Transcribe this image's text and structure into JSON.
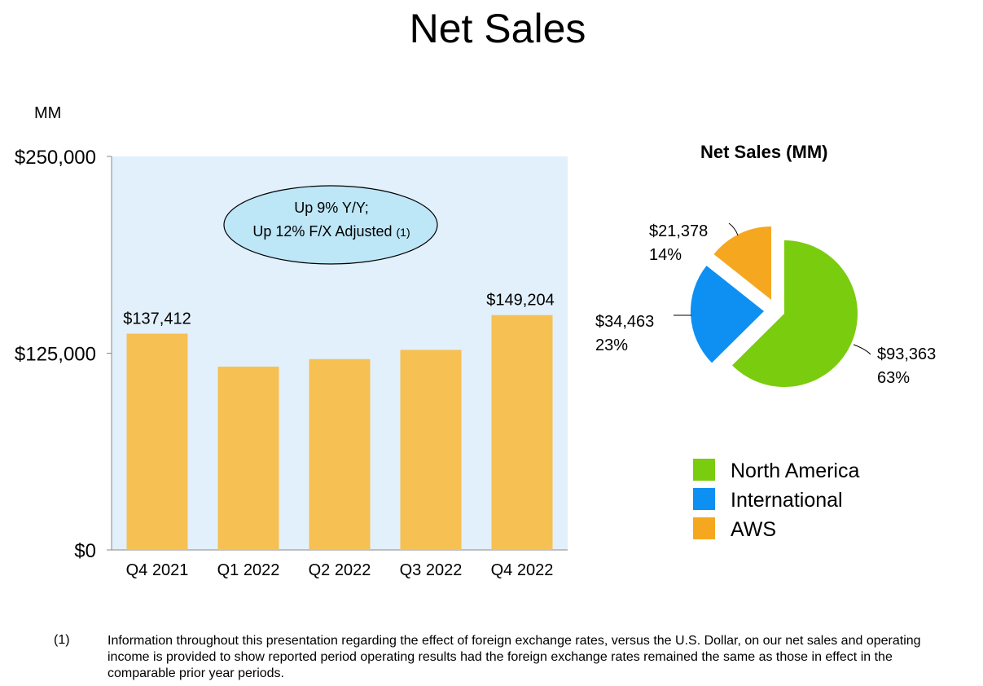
{
  "title": "Net Sales",
  "chart_data": [
    {
      "type": "bar",
      "ylabel": "MM",
      "ylim": [
        0,
        250000
      ],
      "yticks": [
        "$0",
        "$125,000",
        "$250,000"
      ],
      "ytick_values": [
        0,
        125000,
        250000
      ],
      "categories": [
        "Q4 2021",
        "Q1 2022",
        "Q2 2022",
        "Q3 2022",
        "Q4 2022"
      ],
      "values": [
        137412,
        116444,
        121234,
        127101,
        149204
      ],
      "data_labels": [
        "$137,412",
        "",
        "",
        "",
        "$149,204"
      ],
      "annotation": {
        "line1": "Up 9% Y/Y;",
        "line2": "Up 12% F/X Adjusted",
        "note": "(1)"
      },
      "colors": {
        "bar": "#F7C052",
        "plot_bg": "#E2F0FB",
        "callout": "#BDE6F7"
      }
    },
    {
      "type": "pie",
      "title": "Net Sales (MM)",
      "slices": [
        {
          "name": "North America",
          "value": 93363,
          "label": "$93,363",
          "pct": "63%",
          "color": "#7ACC0F"
        },
        {
          "name": "International",
          "value": 34463,
          "label": "$34,463",
          "pct": "23%",
          "color": "#0D90F2"
        },
        {
          "name": "AWS",
          "value": 21378,
          "label": "$21,378",
          "pct": "14%",
          "color": "#F5A81F"
        }
      ],
      "legend_placement": "bottom"
    }
  ],
  "footnote": {
    "marker": "(1)",
    "text": "Information throughout this presentation regarding the effect of foreign exchange rates, versus the U.S. Dollar, on our net sales and operating income is provided to show reported period operating results had the foreign exchange rates remained the same as those in effect in the comparable prior year periods."
  }
}
